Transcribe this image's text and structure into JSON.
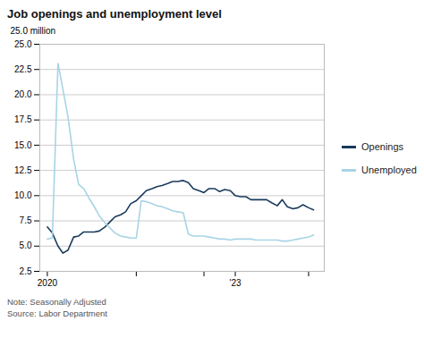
{
  "chart_data": {
    "type": "line",
    "title": "Job openings and unemployment level",
    "ylabel": "25.0 million",
    "note": "Note: Seasonally Adjusted\nSource: Labor Department",
    "x": [
      2020.0,
      2020.08,
      2020.17,
      2020.25,
      2020.33,
      2020.42,
      2020.5,
      2020.58,
      2020.67,
      2020.75,
      2020.83,
      2020.92,
      2021.0,
      2021.08,
      2021.17,
      2021.25,
      2021.33,
      2021.42,
      2021.5,
      2021.58,
      2021.67,
      2021.75,
      2021.83,
      2021.92,
      2022.0,
      2022.08,
      2022.17,
      2022.25,
      2022.33,
      2022.42,
      2022.5,
      2022.58,
      2022.67,
      2022.75,
      2022.83,
      2022.92,
      2023.0,
      2023.08,
      2023.17,
      2023.25,
      2023.33,
      2023.42,
      2023.5,
      2023.58,
      2023.67,
      2023.75,
      2023.83,
      2023.92,
      2024.0,
      2024.08,
      2024.17,
      2024.25
    ],
    "series": [
      {
        "name": "Openings",
        "color": "#1a3a5c",
        "values": [
          6.9,
          6.3,
          5.0,
          4.3,
          4.6,
          5.9,
          6.0,
          6.4,
          6.4,
          6.4,
          6.5,
          6.9,
          7.4,
          7.9,
          8.1,
          8.4,
          9.2,
          9.5,
          10.0,
          10.5,
          10.7,
          10.9,
          11.0,
          11.2,
          11.4,
          11.4,
          11.5,
          11.3,
          10.7,
          10.5,
          10.3,
          10.7,
          10.7,
          10.4,
          10.6,
          10.5,
          10.0,
          9.9,
          9.9,
          9.6,
          9.6,
          9.6,
          9.6,
          9.3,
          9.0,
          9.6,
          8.9,
          8.7,
          8.8,
          9.1,
          8.8,
          8.6
        ]
      },
      {
        "name": "Unemployed",
        "color": "#a8d4e6",
        "values": [
          5.7,
          5.8,
          23.1,
          20.5,
          17.8,
          13.6,
          11.1,
          10.7,
          9.7,
          8.9,
          8.0,
          7.3,
          6.8,
          6.3,
          6.0,
          5.9,
          5.8,
          5.8,
          9.5,
          9.4,
          9.2,
          9.0,
          8.9,
          8.7,
          8.5,
          8.4,
          8.3,
          6.2,
          6.0,
          6.0,
          6.0,
          5.9,
          5.8,
          5.7,
          5.7,
          5.6,
          5.7,
          5.7,
          5.7,
          5.7,
          5.6,
          5.6,
          5.6,
          5.6,
          5.6,
          5.5,
          5.5,
          5.6,
          5.7,
          5.8,
          5.9,
          6.1
        ]
      }
    ],
    "xlim": [
      2019.88,
      2024.42
    ],
    "xticks": [
      2020,
      {
        "value": 2021.42,
        "label": ""
      },
      {
        "value": 2022.5,
        "label": ""
      },
      {
        "value": 2023,
        "label": "'23"
      },
      {
        "value": 2024.17,
        "label": ""
      }
    ],
    "ylim": [
      2.5,
      25.0
    ],
    "yticks": [
      2.5,
      {
        "value": 5,
        "label": "5.0"
      },
      7.5,
      {
        "value": 10,
        "label": "10.0"
      },
      12.5,
      {
        "value": 15,
        "label": "15.0"
      },
      17.5,
      {
        "value": 20,
        "label": "20.0"
      },
      22.5,
      {
        "value": 25,
        "label": "25.0"
      }
    ],
    "grid": "y",
    "legend": "right"
  }
}
